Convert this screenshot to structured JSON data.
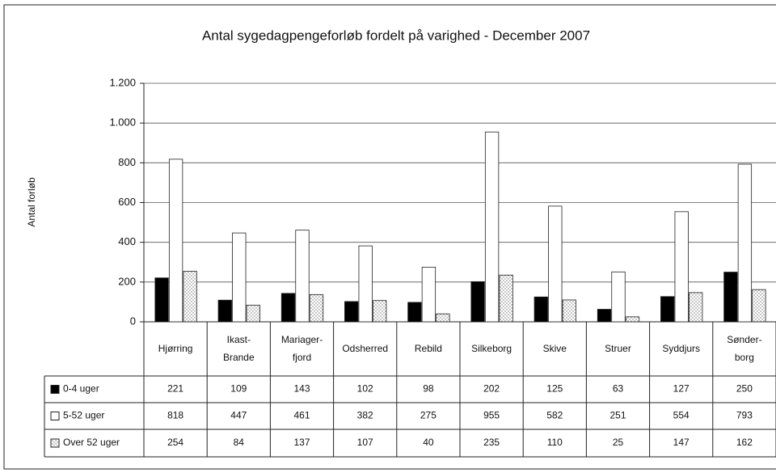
{
  "chart_data": {
    "type": "bar",
    "title": "Antal sygedagpengeforløb fordelt på varighed - December 2007",
    "ylabel": "Antal forløb",
    "categories": [
      "Hjørring",
      "Ikast-Brande",
      "Mariager-fjord",
      "Odsherred",
      "Rebild",
      "Silkeborg",
      "Skive",
      "Struer",
      "Syddjurs",
      "Sønder-borg"
    ],
    "series": [
      {
        "name": "0-4 uger",
        "color": "#000000",
        "values": [
          221,
          109,
          143,
          102,
          98,
          202,
          125,
          63,
          127,
          250
        ]
      },
      {
        "name": "5-52 uger",
        "color": "#ffffff",
        "values": [
          818,
          447,
          461,
          382,
          275,
          955,
          582,
          251,
          554,
          793
        ]
      },
      {
        "name": "Over 52 uger",
        "color": "#ffffff",
        "pattern": "dotted",
        "values": [
          254,
          84,
          137,
          107,
          40,
          235,
          110,
          25,
          147,
          162
        ]
      }
    ],
    "ylim": [
      0,
      1200
    ],
    "yticks": [
      0,
      200,
      400,
      600,
      800,
      {
        "value": 1000,
        "label": "1.000"
      },
      {
        "value": 1200,
        "label": "1.200"
      }
    ],
    "grid": true
  }
}
